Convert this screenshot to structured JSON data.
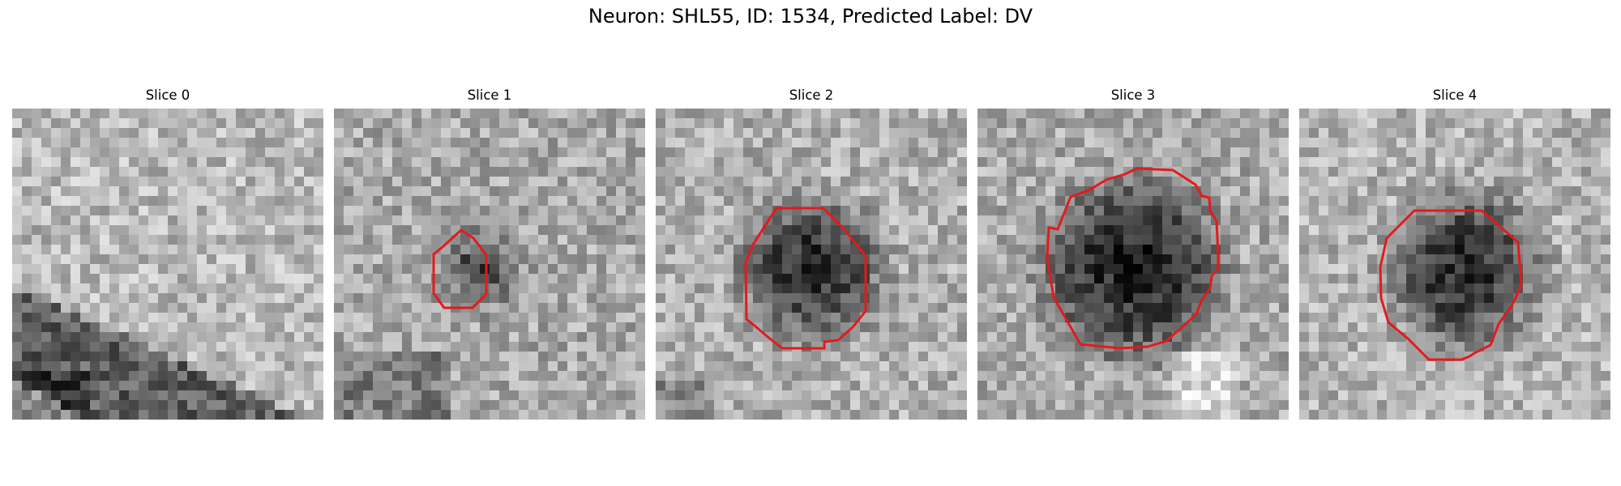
{
  "figure": {
    "title": "Neuron: SHL55, ID: 1534, Predicted Label: DV"
  },
  "panels": [
    {
      "title": "Slice 0",
      "has_contour": false
    },
    {
      "title": "Slice 1",
      "has_contour": true
    },
    {
      "title": "Slice 2",
      "has_contour": true
    },
    {
      "title": "Slice 3",
      "has_contour": true
    },
    {
      "title": "Slice 4",
      "has_contour": true
    }
  ],
  "style": {
    "contour_color": "#e31a1c",
    "colormap": "gray"
  }
}
